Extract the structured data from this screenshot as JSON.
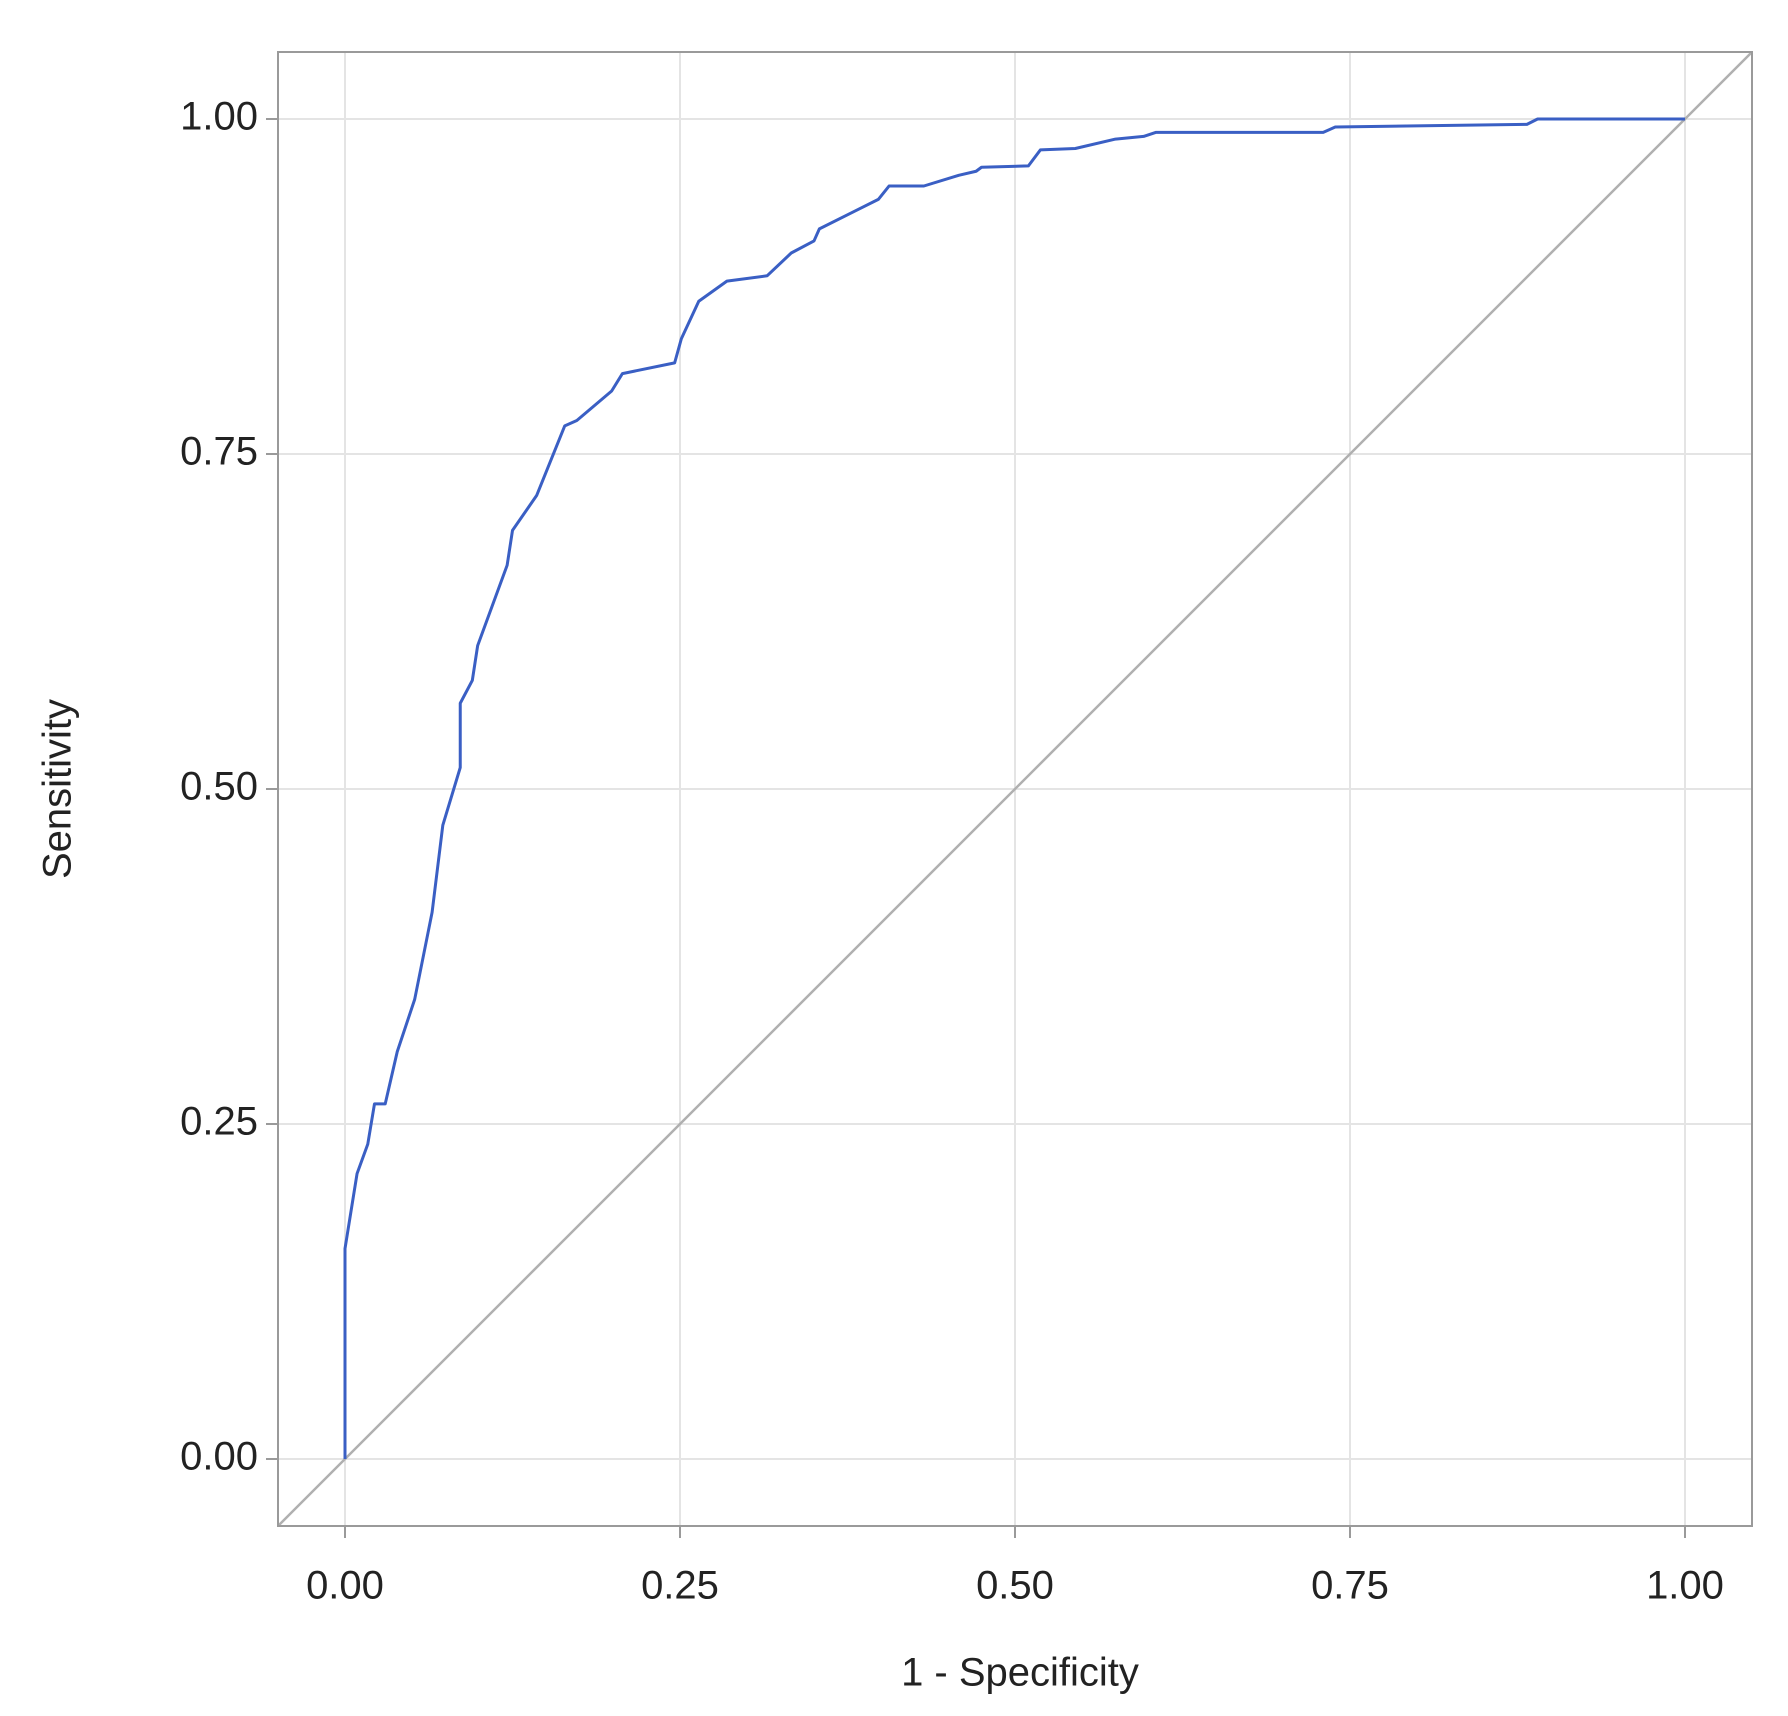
{
  "chart_data": {
    "type": "line",
    "x_label": "1 - Specificity",
    "y_label": "Sensitivity",
    "x": [
      0,
      0,
      0.009,
      0.017,
      0.022,
      0.03,
      0.039,
      0.052,
      0.065,
      0.073,
      0.086,
      0.086,
      0.095,
      0.099,
      0.121,
      0.125,
      0.143,
      0.164,
      0.173,
      0.199,
      0.207,
      0.246,
      0.251,
      0.264,
      0.285,
      0.315,
      0.333,
      0.35,
      0.354,
      0.38,
      0.398,
      0.406,
      0.432,
      0.458,
      0.471,
      0.475,
      0.51,
      0.519,
      0.545,
      0.575,
      0.596,
      0.605,
      0.73,
      0.739,
      0.882,
      0.89,
      1
    ],
    "values": [
      0,
      0.157,
      0.213,
      0.235,
      0.265,
      0.265,
      0.304,
      0.343,
      0.408,
      0.473,
      0.516,
      0.564,
      0.581,
      0.607,
      0.667,
      0.693,
      0.719,
      0.771,
      0.775,
      0.797,
      0.81,
      0.818,
      0.836,
      0.864,
      0.879,
      0.883,
      0.9,
      0.909,
      0.918,
      0.931,
      0.94,
      0.95,
      0.95,
      0.958,
      0.961,
      0.964,
      0.965,
      0.977,
      0.978,
      0.985,
      0.987,
      0.99,
      0.99,
      0.994,
      0.996,
      1,
      1
    ],
    "color": "#3a5fc4",
    "xlim": [
      -0.05,
      1.05
    ],
    "ylim": [
      -0.05,
      1.05
    ],
    "xticks": [
      {
        "value": 0,
        "label": "0.00"
      },
      {
        "value": 0.25,
        "label": "0.25"
      },
      {
        "value": 0.5,
        "label": "0.50"
      },
      {
        "value": 0.75,
        "label": "0.75"
      },
      {
        "value": 1,
        "label": "1.00"
      }
    ],
    "yticks": [
      {
        "value": 0,
        "label": "0.00"
      },
      {
        "value": 0.25,
        "label": "0.25"
      },
      {
        "value": 0.5,
        "label": "0.50"
      },
      {
        "value": 0.75,
        "label": "0.75"
      },
      {
        "value": 1,
        "label": "1.00"
      }
    ],
    "grid": true,
    "diagonal": true
  }
}
